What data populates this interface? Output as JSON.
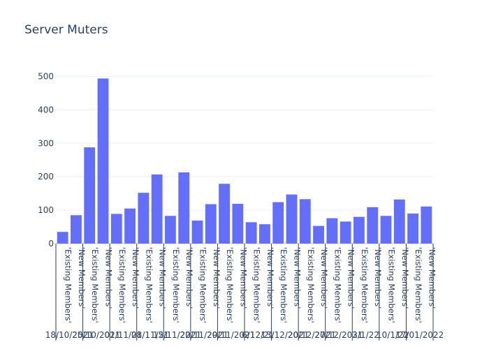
{
  "chart_data": {
    "type": "bar",
    "title": "Server Muters",
    "xlabel": "",
    "ylabel": "",
    "ylim": [
      0,
      520
    ],
    "yticks": [
      0,
      100,
      200,
      300,
      400,
      500
    ],
    "grid": true,
    "bar_color": "#636efa",
    "groups": [
      {
        "date": "18/10/2021",
        "bars": [
          {
            "category": "'Existing Members'",
            "value": 35
          },
          {
            "category": "'New Members'",
            "value": 85
          }
        ]
      },
      {
        "date": "25/10/2021",
        "bars": [
          {
            "category": "'Existing Members'",
            "value": 288
          },
          {
            "category": "'New Members'",
            "value": 494
          }
        ]
      },
      {
        "date": "01/11/21",
        "bars": [
          {
            "category": "'Existing Members'",
            "value": 89
          },
          {
            "category": "'New Members'",
            "value": 105
          }
        ]
      },
      {
        "date": "08/11/21",
        "bars": [
          {
            "category": "'Existing Members'",
            "value": 152
          },
          {
            "category": "'New Members'",
            "value": 207
          }
        ]
      },
      {
        "date": "15/11/2021",
        "bars": [
          {
            "category": "'Existing Members'",
            "value": 83
          },
          {
            "category": "'New Members'",
            "value": 213
          }
        ]
      },
      {
        "date": "22/11/2021",
        "bars": [
          {
            "category": "'Existing Members'",
            "value": 69
          },
          {
            "category": "'New Members'",
            "value": 118
          }
        ]
      },
      {
        "date": "29/11/2021",
        "bars": [
          {
            "category": "'Existing Members'",
            "value": 179
          },
          {
            "category": "'New Members'",
            "value": 119
          }
        ]
      },
      {
        "date": "6/12/21",
        "bars": [
          {
            "category": "'Existing Members'",
            "value": 64
          },
          {
            "category": "'New Members'",
            "value": 58
          }
        ]
      },
      {
        "date": "13/12/2021",
        "bars": [
          {
            "category": "'Existing Members'",
            "value": 124
          },
          {
            "category": "'New Members'",
            "value": 147
          }
        ]
      },
      {
        "date": "20/12/2021",
        "bars": [
          {
            "category": "'Existing Members'",
            "value": 133
          },
          {
            "category": "'New Members'",
            "value": 53
          }
        ]
      },
      {
        "date": "27/12/2021",
        "bars": [
          {
            "category": "'Existing Members'",
            "value": 76
          },
          {
            "category": "'New Members'",
            "value": 66
          }
        ]
      },
      {
        "date": "3/1/22",
        "bars": [
          {
            "category": "'Existing Members'",
            "value": 80
          },
          {
            "category": "'New Members'",
            "value": 109
          }
        ]
      },
      {
        "date": "10/1/22",
        "bars": [
          {
            "category": "'Existing Members'",
            "value": 83
          },
          {
            "category": "'New Members'",
            "value": 132
          }
        ]
      },
      {
        "date": "17/01/2022",
        "bars": [
          {
            "category": "'Existing Members'",
            "value": 90
          },
          {
            "category": "'New Members'",
            "value": 111
          }
        ]
      }
    ]
  }
}
